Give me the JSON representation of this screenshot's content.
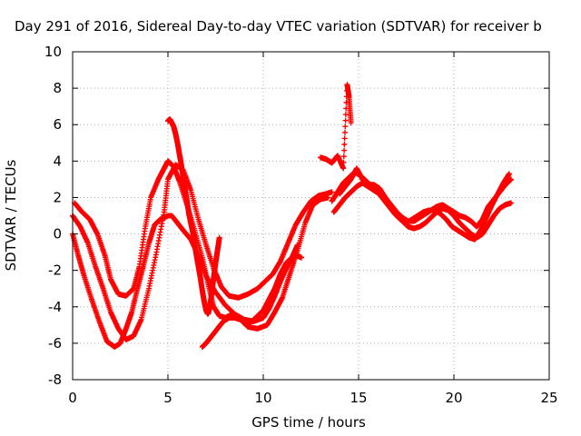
{
  "chart_data": {
    "type": "scatter",
    "title": "Day 291 of 2016, Sidereal Day-to-day VTEC variation (SDTVAR) for receiver b",
    "xlabel": "GPS time / hours",
    "ylabel": "SDTVAR / TECUs",
    "xlim": [
      0,
      25
    ],
    "ylim": [
      -8,
      10
    ],
    "x_ticks": [
      "0",
      "5",
      "10",
      "15",
      "20",
      "25"
    ],
    "y_ticks": [
      "10",
      "8",
      "6",
      "4",
      "2",
      "0",
      "-2",
      "-4",
      "-6",
      "-8"
    ],
    "grid": true,
    "legend": "none",
    "marker": "plus",
    "color": "#ff0000",
    "series": [
      {
        "x": [
          0.0,
          0.3,
          0.6,
          1.0,
          1.4,
          1.8,
          2.2,
          2.5,
          2.8,
          3.1,
          3.4,
          3.7,
          4.0,
          4.3,
          4.6,
          5.0,
          5.2,
          5.5,
          5.8,
          6.2,
          6.6,
          7.0,
          7.5,
          8.0,
          8.5,
          9.0,
          9.5,
          10.0,
          10.3,
          10.6,
          10.9,
          11.2,
          11.5,
          11.8
        ],
        "y": [
          0.0,
          -1.2,
          -2.3,
          -3.6,
          -4.8,
          -5.9,
          -6.2,
          -6.0,
          -5.2,
          -4.3,
          -3.0,
          -1.8,
          -0.5,
          0.5,
          0.8,
          1.0,
          1.0,
          0.6,
          0.2,
          -0.3,
          -1.2,
          -2.3,
          -3.2,
          -3.9,
          -4.4,
          -4.7,
          -4.8,
          -4.6,
          -4.1,
          -3.4,
          -2.6,
          -1.9,
          -1.3,
          -0.6
        ]
      },
      {
        "x": [
          0.0,
          0.4,
          0.8,
          1.2,
          1.6,
          2.0,
          2.4,
          2.8,
          3.2,
          3.6,
          4.0,
          4.4,
          4.8,
          5.0,
          5.4,
          5.8,
          6.2,
          6.6,
          7.0,
          7.4,
          7.8,
          8.2,
          8.7,
          9.2,
          9.7,
          10.1,
          10.5,
          10.9,
          11.3,
          11.7,
          12.1,
          12.5,
          12.9,
          13.3,
          13.6
        ],
        "y": [
          1.0,
          0.4,
          -0.5,
          -1.8,
          -3.0,
          -4.3,
          -5.2,
          -5.8,
          -5.6,
          -4.7,
          -3.0,
          -1.0,
          1.2,
          3.0,
          3.8,
          3.5,
          2.4,
          0.8,
          -0.6,
          -1.9,
          -2.9,
          -3.4,
          -3.5,
          -3.3,
          -3.0,
          -2.6,
          -2.2,
          -1.5,
          -0.5,
          0.5,
          1.2,
          1.8,
          2.1,
          2.2,
          2.3
        ]
      },
      {
        "x": [
          0.1,
          0.5,
          0.9,
          1.3,
          1.7,
          2.0,
          2.4,
          2.8,
          3.2,
          3.5,
          3.8,
          4.1,
          4.5,
          4.8,
          5.0,
          5.3,
          5.6,
          6.0,
          6.4,
          6.8,
          7.1,
          7.4,
          7.7,
          8.0,
          8.4,
          8.8,
          9.2,
          9.7,
          10.2,
          10.6,
          11.0,
          11.4,
          11.8,
          12.2,
          12.6,
          13.0,
          13.4
        ],
        "y": [
          1.7,
          1.2,
          0.8,
          0.0,
          -1.2,
          -2.5,
          -3.3,
          -3.4,
          -3.0,
          -1.8,
          0.3,
          2.0,
          3.0,
          3.6,
          4.0,
          3.7,
          2.9,
          1.6,
          0.2,
          -1.3,
          -2.7,
          -4.0,
          -4.5,
          -4.6,
          -4.4,
          -4.7,
          -5.1,
          -5.2,
          -5.0,
          -4.3,
          -3.5,
          -2.2,
          -0.9,
          0.6,
          1.6,
          1.9,
          2.0
        ]
      },
      {
        "x": [
          5.0,
          5.1,
          5.2,
          5.3,
          5.4,
          5.5,
          5.6,
          5.7,
          5.8,
          5.9,
          6.0,
          6.1,
          6.2,
          6.3,
          6.4,
          6.5,
          6.6,
          6.7,
          6.8,
          6.9,
          7.0,
          7.1,
          7.2,
          7.3,
          7.4,
          7.5,
          7.6,
          7.7
        ],
        "y": [
          6.2,
          6.3,
          6.1,
          5.9,
          5.5,
          5.0,
          4.4,
          3.8,
          3.1,
          2.4,
          1.8,
          1.1,
          0.6,
          0.1,
          -0.6,
          -1.2,
          -1.8,
          -2.4,
          -3.1,
          -3.7,
          -4.2,
          -4.4,
          -4.0,
          -3.2,
          -2.4,
          -1.6,
          -0.9,
          -0.2
        ]
      },
      {
        "x": [
          6.8,
          7.0,
          7.3,
          7.6,
          7.9,
          8.2,
          8.5,
          8.8,
          9.1,
          9.4,
          9.7,
          10.0,
          10.3,
          10.6,
          10.9,
          11.2,
          11.5,
          11.8,
          12.0
        ],
        "y": [
          -6.2,
          -6.0,
          -5.6,
          -5.2,
          -4.8,
          -4.6,
          -4.6,
          -4.7,
          -4.9,
          -4.8,
          -4.5,
          -4.2,
          -3.6,
          -3.0,
          -2.2,
          -1.6,
          -1.3,
          -1.2,
          -1.3
        ]
      },
      {
        "x": [
          13.0,
          13.3,
          13.6,
          13.9,
          14.2,
          14.4,
          14.5,
          14.6
        ],
        "y": [
          4.2,
          4.1,
          3.9,
          4.3,
          3.6,
          8.2,
          7.5,
          6.1
        ]
      },
      {
        "x": [
          13.6,
          13.9,
          14.2,
          14.5,
          14.8,
          15.1,
          15.4,
          15.7,
          16.0,
          16.3,
          16.6,
          16.9,
          17.2,
          17.5,
          17.8,
          18.1,
          18.4,
          18.7,
          19.0,
          19.3,
          19.6,
          19.9,
          20.2,
          20.5,
          20.8,
          21.1,
          21.4,
          21.7,
          22.0,
          22.3,
          22.6,
          22.9
        ],
        "y": [
          1.8,
          2.3,
          2.8,
          3.1,
          3.4,
          3.2,
          2.9,
          2.6,
          2.3,
          1.9,
          1.5,
          1.1,
          0.8,
          0.6,
          0.8,
          1.0,
          1.2,
          1.3,
          1.3,
          1.1,
          0.8,
          0.4,
          0.2,
          0.0,
          -0.2,
          -0.3,
          0.2,
          0.9,
          1.6,
          2.2,
          2.8,
          3.3
        ]
      },
      {
        "x": [
          13.7,
          14.0,
          14.3,
          14.6,
          14.9,
          15.2,
          15.5,
          15.8,
          16.1,
          16.4,
          16.7,
          17.0,
          17.3,
          17.6,
          17.9,
          18.2,
          18.5,
          18.8,
          19.1,
          19.4,
          19.7,
          20.0,
          20.3,
          20.6,
          20.9,
          21.2,
          21.5,
          21.8,
          22.1,
          22.4,
          22.7,
          23.0
        ],
        "y": [
          1.2,
          1.6,
          2.0,
          2.3,
          2.6,
          2.8,
          2.6,
          2.4,
          2.2,
          1.8,
          1.4,
          1.0,
          0.7,
          0.4,
          0.3,
          0.4,
          0.6,
          0.9,
          1.2,
          1.4,
          1.3,
          1.0,
          0.6,
          0.3,
          0.0,
          -0.2,
          0.0,
          0.5,
          1.0,
          1.4,
          1.6,
          1.7
        ]
      },
      {
        "x": [
          14.0,
          14.3,
          14.6,
          14.9,
          15.2,
          15.5,
          15.8,
          16.1,
          16.4,
          16.7,
          17.0,
          17.3,
          17.6,
          17.9,
          18.2,
          18.5,
          18.8,
          19.1,
          19.4,
          19.7,
          20.0,
          20.3,
          20.6,
          20.9,
          21.2,
          21.5,
          21.8,
          22.1,
          22.4,
          22.7,
          23.0
        ],
        "y": [
          2.2,
          2.6,
          3.0,
          3.6,
          3.0,
          2.7,
          2.7,
          2.5,
          2.0,
          1.6,
          1.2,
          0.9,
          0.7,
          0.7,
          0.9,
          1.1,
          1.3,
          1.5,
          1.6,
          1.4,
          1.2,
          1.0,
          0.9,
          0.7,
          0.4,
          0.8,
          1.5,
          1.9,
          2.3,
          2.7,
          3.0
        ]
      }
    ]
  }
}
